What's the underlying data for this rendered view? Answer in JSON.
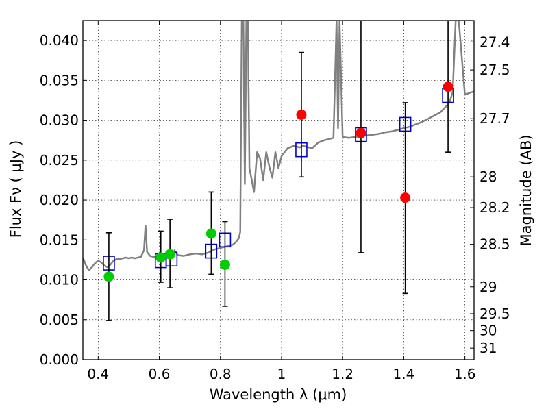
{
  "chart_data": {
    "type": "scatter",
    "xlabel": "Wavelength  λ (μm)",
    "ylabel": "Flux  Fν  ( μJy )",
    "y2label": "Magnitude (AB)",
    "xlim": [
      0.35,
      1.63
    ],
    "ylim": [
      0.0,
      0.0425
    ],
    "grid": true,
    "x_ticks": [
      {
        "value": 0.4,
        "label": "0.4"
      },
      {
        "value": 0.6,
        "label": "0.6"
      },
      {
        "value": 0.8,
        "label": "0.8"
      },
      {
        "value": 1.0,
        "label": "1"
      },
      {
        "value": 1.2,
        "label": "1.2"
      },
      {
        "value": 1.4,
        "label": "1.4"
      },
      {
        "value": 1.6,
        "label": "1.6"
      }
    ],
    "y_ticks": [
      {
        "value": 0.0,
        "label": "0.000"
      },
      {
        "value": 0.005,
        "label": "0.005"
      },
      {
        "value": 0.01,
        "label": "0.010"
      },
      {
        "value": 0.015,
        "label": "0.015"
      },
      {
        "value": 0.02,
        "label": "0.020"
      },
      {
        "value": 0.025,
        "label": "0.025"
      },
      {
        "value": 0.03,
        "label": "0.030"
      },
      {
        "value": 0.035,
        "label": "0.035"
      },
      {
        "value": 0.04,
        "label": "0.040"
      }
    ],
    "mag_ticks": [
      {
        "mag": 27.4,
        "label": "27.4"
      },
      {
        "mag": 27.5,
        "label": "27.5"
      },
      {
        "mag": 27.7,
        "label": "27.7"
      },
      {
        "mag": 28,
        "label": "28"
      },
      {
        "mag": 28.2,
        "label": "28.2"
      },
      {
        "mag": 28.5,
        "label": "28.5"
      },
      {
        "mag": 29,
        "label": "29"
      },
      {
        "mag": 29.5,
        "label": "29.5"
      },
      {
        "mag": 30,
        "label": "30"
      },
      {
        "mag": 31,
        "label": "31"
      }
    ],
    "series": [
      {
        "kind": "spectrum",
        "color": "#808080",
        "x": [
          0.35,
          0.36,
          0.37,
          0.38,
          0.39,
          0.4,
          0.41,
          0.42,
          0.43,
          0.44,
          0.45,
          0.46,
          0.47,
          0.48,
          0.49,
          0.5,
          0.51,
          0.52,
          0.53,
          0.54,
          0.55,
          0.555,
          0.56,
          0.57,
          0.58,
          0.6,
          0.62,
          0.64,
          0.65,
          0.66,
          0.68,
          0.7,
          0.72,
          0.74,
          0.76,
          0.77,
          0.78,
          0.8,
          0.82,
          0.84,
          0.85,
          0.86,
          0.865,
          0.87,
          0.875,
          0.88,
          0.885,
          0.89,
          0.895,
          0.9,
          0.91,
          0.92,
          0.93,
          0.94,
          0.95,
          0.96,
          0.97,
          0.98,
          0.99,
          1.0,
          1.02,
          1.04,
          1.06,
          1.07,
          1.08,
          1.1,
          1.12,
          1.14,
          1.16,
          1.17,
          1.18,
          1.185,
          1.19,
          1.2,
          1.22,
          1.24,
          1.26,
          1.28,
          1.3,
          1.32,
          1.34,
          1.36,
          1.38,
          1.4,
          1.42,
          1.44,
          1.46,
          1.48,
          1.5,
          1.52,
          1.54,
          1.55,
          1.56,
          1.57,
          1.58,
          1.6,
          1.62,
          1.63
        ],
        "y": [
          0.0128,
          0.0118,
          0.0112,
          0.0116,
          0.0121,
          0.0124,
          0.0122,
          0.0118,
          0.0116,
          0.0119,
          0.0124,
          0.0126,
          0.0126,
          0.0127,
          0.0128,
          0.0127,
          0.0128,
          0.0127,
          0.0128,
          0.0129,
          0.0137,
          0.0168,
          0.0135,
          0.013,
          0.0129,
          0.0129,
          0.0128,
          0.0129,
          0.0137,
          0.0131,
          0.013,
          0.0132,
          0.0133,
          0.0132,
          0.0134,
          0.0136,
          0.0138,
          0.014,
          0.0142,
          0.0144,
          0.0147,
          0.0152,
          0.016,
          0.0425,
          0.0425,
          0.022,
          0.0425,
          0.0425,
          0.024,
          0.023,
          0.021,
          0.026,
          0.0252,
          0.0225,
          0.026,
          0.0242,
          0.0228,
          0.026,
          0.024,
          0.0255,
          0.0265,
          0.0268,
          0.0266,
          0.0268,
          0.0267,
          0.0265,
          0.0272,
          0.0275,
          0.0277,
          0.0278,
          0.0425,
          0.029,
          0.0425,
          0.0279,
          0.0278,
          0.0279,
          0.028,
          0.0281,
          0.0282,
          0.0283,
          0.0285,
          0.0286,
          0.0288,
          0.029,
          0.0292,
          0.0295,
          0.0298,
          0.0302,
          0.0306,
          0.031,
          0.0318,
          0.0323,
          0.0335,
          0.0425,
          0.0425,
          0.0332,
          0.0335,
          0.0336
        ]
      },
      {
        "kind": "model",
        "color": "#0000cc",
        "x": [
          0.435,
          0.605,
          0.64,
          0.77,
          0.815,
          1.065,
          1.26,
          1.405,
          1.545
        ],
        "y": [
          0.0121,
          0.0124,
          0.0126,
          0.0136,
          0.015,
          0.0263,
          0.0282,
          0.0295,
          0.0331
        ]
      },
      {
        "kind": "observed",
        "color": "#00cc00",
        "x": [
          0.435,
          0.605,
          0.635,
          0.77,
          0.815
        ],
        "y": [
          0.0104,
          0.0128,
          0.0132,
          0.0158,
          0.0119
        ],
        "err_lo": [
          0.0049,
          0.0097,
          0.009,
          0.0107,
          0.0067
        ],
        "err_hi": [
          0.0159,
          0.0161,
          0.0176,
          0.021,
          0.0173
        ]
      },
      {
        "kind": "observed",
        "color": "#ff0000",
        "x": [
          1.065,
          1.26,
          1.405,
          1.545
        ],
        "y": [
          0.0307,
          0.0284,
          0.0203,
          0.0342
        ],
        "err_lo": [
          0.0229,
          0.0134,
          0.0083,
          0.026
        ],
        "err_hi": [
          0.0385,
          0.0425,
          0.0322,
          0.0425
        ]
      }
    ]
  }
}
